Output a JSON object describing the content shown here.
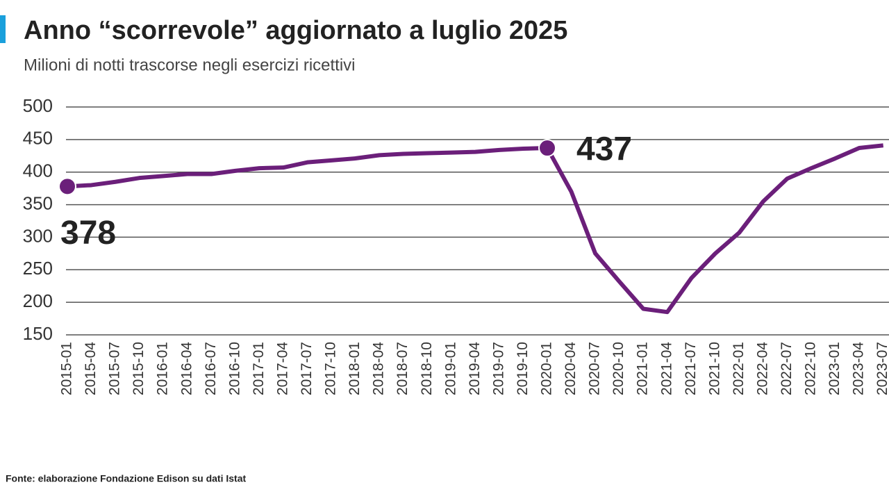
{
  "chart_data": {
    "type": "line",
    "title": "Anno “scorrevole” aggiornato a luglio 2025",
    "subtitle": "Milioni di notti trascorse negli esercizi ricettivi",
    "source": "Fonte: elaborazione Fondazione Edison su dati Istat",
    "categories": [
      "2015-01",
      "2015-04",
      "2015-07",
      "2015-10",
      "2016-01",
      "2016-04",
      "2016-07",
      "2016-10",
      "2017-01",
      "2017-04",
      "2017-07",
      "2017-10",
      "2018-01",
      "2018-04",
      "2018-07",
      "2018-10",
      "2019-01",
      "2019-04",
      "2019-07",
      "2019-10",
      "2020-01",
      "2020-04",
      "2020-07",
      "2020-10",
      "2021-01",
      "2021-04",
      "2021-07",
      "2021-10",
      "2022-01",
      "2022-04",
      "2022-07",
      "2022-10",
      "2023-01",
      "2023-04",
      "2023-07"
    ],
    "series": [
      {
        "name": "Notti",
        "color": "#6b1f7a",
        "values": [
          378,
          380,
          385,
          391,
          394,
          397,
          397,
          402,
          406,
          407,
          415,
          418,
          421,
          426,
          428,
          429,
          430,
          431,
          434,
          436,
          437,
          370,
          275,
          232,
          190,
          185,
          237,
          275,
          307,
          355,
          390,
          406,
          421,
          437,
          441
        ]
      }
    ],
    "annotations": [
      {
        "index": 0,
        "label": "378"
      },
      {
        "index": 20,
        "label": "437"
      }
    ],
    "ylim": [
      150,
      500
    ],
    "yticks": [
      150,
      200,
      250,
      300,
      350,
      400,
      450,
      500
    ],
    "grid": true
  }
}
